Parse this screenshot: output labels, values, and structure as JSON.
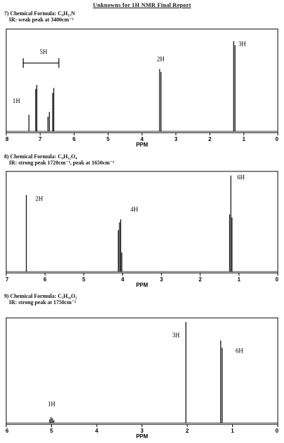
{
  "page": {
    "title": "Unknowns for 1H NMR Final Report"
  },
  "problems": [
    {
      "heading": "7) Chemical Formula: C₈H₁₁N",
      "ir": "IR: weak peak at 3400cm⁻¹",
      "xmax": 8,
      "ticks": [
        "8",
        "7",
        "6",
        "5",
        "4",
        "3",
        "2",
        "1",
        "0"
      ],
      "xlabel": "PPM",
      "peaks": [
        {
          "ppm": 7.33,
          "h": 0.18
        },
        {
          "ppm": 7.13,
          "h": 0.44
        },
        {
          "ppm": 7.1,
          "h": 0.48
        },
        {
          "ppm": 6.77,
          "h": 0.16
        },
        {
          "ppm": 6.73,
          "h": 0.21
        },
        {
          "ppm": 6.63,
          "h": 0.4
        },
        {
          "ppm": 6.6,
          "h": 0.45
        },
        {
          "ppm": 3.48,
          "h": 0.64
        },
        {
          "ppm": 3.44,
          "h": 0.61
        },
        {
          "ppm": 1.3,
          "h": 0.92
        },
        {
          "ppm": 1.26,
          "h": 0.88
        }
      ],
      "labels": [
        {
          "text": "5H",
          "ppm": 6.9,
          "h": 0.79
        },
        {
          "text": "1H",
          "ppm": 7.7,
          "h": 0.3
        },
        {
          "text": "2H",
          "ppm": 3.45,
          "h": 0.72
        },
        {
          "text": "3H",
          "ppm": 1.05,
          "h": 0.87
        }
      ],
      "bracket": {
        "from": 7.5,
        "to": 6.45,
        "h": 0.7
      }
    },
    {
      "heading": "8) Chemical Formula: C₈H₁₂O₄",
      "ir": "IR: strong peak 1720cm⁻¹, peak at 1650cm⁻¹",
      "xmax": 7,
      "ticks": [
        "7",
        "6",
        "5",
        "4",
        "3",
        "2",
        "1",
        "0"
      ],
      "xlabel": "PPM",
      "peaks": [
        {
          "ppm": 6.48,
          "h": 0.8
        },
        {
          "ppm": 4.11,
          "h": 0.44
        },
        {
          "ppm": 4.08,
          "h": 0.52
        },
        {
          "ppm": 4.05,
          "h": 0.55
        },
        {
          "ppm": 4.02,
          "h": 0.21
        },
        {
          "ppm": 1.24,
          "h": 0.6
        },
        {
          "ppm": 1.21,
          "h": 1.0
        },
        {
          "ppm": 1.18,
          "h": 0.57
        }
      ],
      "labels": [
        {
          "text": "2H",
          "ppm": 6.15,
          "h": 0.74
        },
        {
          "text": "4H",
          "ppm": 3.7,
          "h": 0.63
        },
        {
          "text": "6H",
          "ppm": 0.95,
          "h": 0.96
        }
      ]
    },
    {
      "heading": "9) Chemical Formula: C₅H₁₀O₂",
      "ir": "IR: strong peak at 1750cm⁻¹",
      "xmax": 6,
      "ticks": [
        "6",
        "5",
        "4",
        "3",
        "2",
        "1",
        "0"
      ],
      "xlabel": "PPM",
      "peaks": [
        {
          "ppm": 5.04,
          "h": 0.05
        },
        {
          "ppm": 5.01,
          "h": 0.07
        },
        {
          "ppm": 4.98,
          "h": 0.06
        },
        {
          "ppm": 4.95,
          "h": 0.04
        },
        {
          "ppm": 2.03,
          "h": 1.0
        },
        {
          "ppm": 1.26,
          "h": 0.82
        },
        {
          "ppm": 1.23,
          "h": 0.75
        }
      ],
      "labels": [
        {
          "text": "1H",
          "ppm": 5.0,
          "h": 0.18
        },
        {
          "text": "3H",
          "ppm": 2.25,
          "h": 0.85
        },
        {
          "text": "6H",
          "ppm": 0.85,
          "h": 0.7
        }
      ]
    }
  ]
}
